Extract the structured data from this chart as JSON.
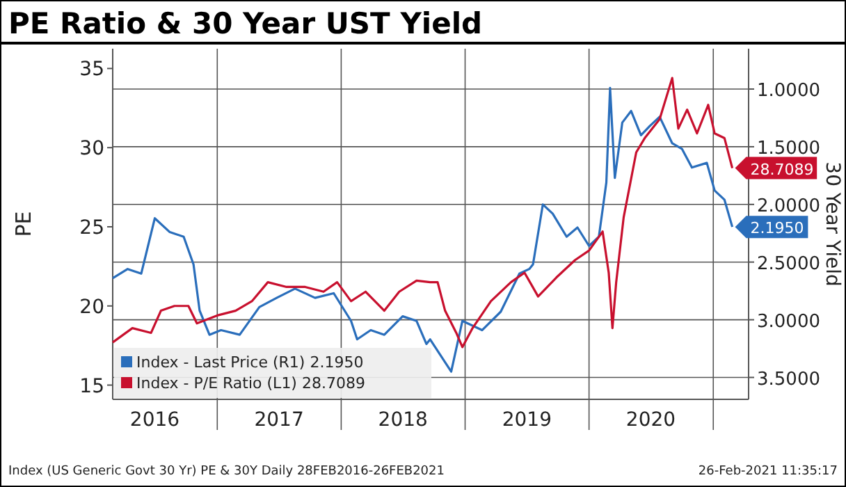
{
  "chart_data": {
    "type": "line",
    "title": "PE Ratio & 30 Year UST Yield",
    "ylabel": "PE",
    "y2label": "30 Year Yield",
    "xlim": [
      "2016-02-28",
      "2021-04-15"
    ],
    "xticks": [
      {
        "value": "2016-07-01",
        "label": "2016"
      },
      {
        "value": "2017-01-01",
        "label": null
      },
      {
        "value": "2017-07-02",
        "label": "2017"
      },
      {
        "value": "2018-01-01",
        "label": null
      },
      {
        "value": "2018-07-02",
        "label": "2018"
      },
      {
        "value": "2019-01-01",
        "label": null
      },
      {
        "value": "2019-07-02",
        "label": "2019"
      },
      {
        "value": "2020-01-01",
        "label": null
      },
      {
        "value": "2020-07-01",
        "label": "2020"
      },
      {
        "value": "2021-01-01",
        "label": null
      }
    ],
    "ylim": [
      14.1,
      36.25
    ],
    "yticks": [
      15,
      20,
      25,
      30,
      35
    ],
    "y2lim": [
      3.69,
      0.65
    ],
    "y2ticks": [
      {
        "value": 1,
        "label": "1.0000"
      },
      {
        "value": 1.5,
        "label": "1.5000"
      },
      {
        "value": 2,
        "label": "2.0000"
      },
      {
        "value": 2.5,
        "label": "2.5000"
      },
      {
        "value": 3,
        "label": "3.0000"
      },
      {
        "value": 3.5,
        "label": "3.5000"
      }
    ],
    "grid": true,
    "legend": "bottom left",
    "series": [
      {
        "name": "Index - Last Price (R1)  2.1950",
        "color": "#2a6ebb",
        "axis": "y2",
        "x": [
          "2016-02-28",
          "2016-04-12",
          "2016-05-22",
          "2016-07-01",
          "2016-08-14",
          "2016-09-24",
          "2016-10-23",
          "2016-11-10",
          "2016-12-09",
          "2017-01-12",
          "2017-03-08",
          "2017-05-05",
          "2017-06-25",
          "2017-08-18",
          "2017-10-16",
          "2017-12-10",
          "2018-01-30",
          "2018-02-17",
          "2018-03-29",
          "2018-05-08",
          "2018-07-01",
          "2018-08-11",
          "2018-09-09",
          "2018-09-20",
          "2018-11-21",
          "2018-12-24",
          "2019-02-20",
          "2019-04-16",
          "2019-06-10",
          "2019-07-09",
          "2019-07-20",
          "2019-08-18",
          "2019-09-16",
          "2019-10-27",
          "2019-11-28",
          "2020-01-01",
          "2020-01-30",
          "2020-02-21",
          "2020-03-03",
          "2020-03-17",
          "2020-04-08",
          "2020-05-04",
          "2020-06-02",
          "2020-06-28",
          "2020-07-27",
          "2020-09-02",
          "2020-10-01",
          "2020-10-30",
          "2020-12-13",
          "2021-01-05",
          "2021-02-03",
          "2021-02-26"
        ],
        "values": [
          2.64,
          2.56,
          2.6,
          2.12,
          2.24,
          2.28,
          2.52,
          2.92,
          3.13,
          3.09,
          3.13,
          2.89,
          2.81,
          2.73,
          2.81,
          2.77,
          3.01,
          3.17,
          3.09,
          3.13,
          2.97,
          3.01,
          3.21,
          3.17,
          3.45,
          3.01,
          3.09,
          2.93,
          2.6,
          2.56,
          2.52,
          2.0,
          2.08,
          2.28,
          2.2,
          2.36,
          2.28,
          1.81,
          0.99,
          1.77,
          1.29,
          1.19,
          1.4,
          1.32,
          1.24,
          1.47,
          1.52,
          1.68,
          1.64,
          1.88,
          1.96,
          2.195
        ],
        "value_labels": [
          null,
          null,
          null,
          null,
          null,
          null,
          null,
          null,
          null,
          null,
          null,
          null,
          null,
          null,
          null,
          null,
          null,
          null,
          null,
          null,
          null,
          null,
          null,
          null,
          null,
          null,
          null,
          null,
          null,
          null,
          null,
          null,
          null,
          null,
          null,
          null,
          null,
          null,
          null,
          null,
          null,
          null,
          null,
          null,
          null,
          null,
          null,
          null,
          null,
          null,
          null,
          "2.1950"
        ]
      },
      {
        "name": "Index - P/E Ratio (L1)  28.7089",
        "color": "#c8102e",
        "x": [
          "2016-02-28",
          "2016-04-26",
          "2016-06-20",
          "2016-07-19",
          "2016-08-28",
          "2016-10-08",
          "2016-11-02",
          "2017-01-01",
          "2017-02-24",
          "2017-04-13",
          "2017-05-30",
          "2017-07-24",
          "2017-09-17",
          "2017-11-10",
          "2017-12-20",
          "2018-01-30",
          "2018-03-14",
          "2018-05-08",
          "2018-06-21",
          "2018-08-11",
          "2018-09-20",
          "2018-10-12",
          "2018-11-03",
          "2018-12-06",
          "2018-12-24",
          "2019-01-23",
          "2019-03-18",
          "2019-05-16",
          "2019-06-25",
          "2019-08-04",
          "2019-09-27",
          "2019-11-21",
          "2020-01-01",
          "2020-02-10",
          "2020-02-28",
          "2020-03-10",
          "2020-03-21",
          "2020-04-12",
          "2020-05-19",
          "2020-06-13",
          "2020-07-27",
          "2020-09-02",
          "2020-09-20",
          "2020-10-16",
          "2020-11-14",
          "2020-12-17",
          "2021-01-05",
          "2021-02-03",
          "2021-02-26"
        ],
        "values": [
          17.7,
          18.6,
          18.3,
          19.7,
          20.0,
          20.0,
          18.9,
          19.4,
          19.7,
          20.3,
          21.5,
          21.2,
          21.2,
          20.9,
          21.5,
          20.3,
          20.9,
          19.7,
          20.9,
          21.6,
          21.5,
          21.5,
          19.7,
          18.3,
          17.4,
          18.6,
          20.3,
          21.5,
          22.1,
          20.6,
          21.8,
          22.9,
          23.5,
          24.7,
          22.1,
          18.6,
          21.5,
          25.6,
          29.7,
          30.6,
          31.8,
          34.4,
          31.2,
          32.4,
          30.9,
          32.7,
          30.9,
          30.6,
          28.7089
        ],
        "value_labels": [
          null,
          null,
          null,
          null,
          null,
          null,
          null,
          null,
          null,
          null,
          null,
          null,
          null,
          null,
          null,
          null,
          null,
          null,
          null,
          null,
          null,
          null,
          null,
          null,
          null,
          null,
          null,
          null,
          null,
          null,
          null,
          null,
          null,
          null,
          null,
          null,
          null,
          null,
          null,
          null,
          null,
          null,
          null,
          null,
          null,
          null,
          null,
          null,
          "28.7089"
        ]
      }
    ],
    "annotations": [
      "Index (US Generic Govt 30 Yr) PE & 30Y  Daily 28FEB2016-26FEB2021",
      "26-Feb-2021 11:35:17"
    ]
  }
}
